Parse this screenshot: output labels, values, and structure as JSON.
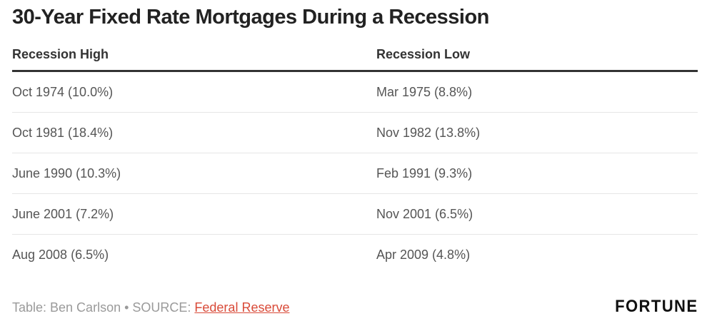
{
  "chart_data": {
    "type": "table",
    "title": "30-Year Fixed Rate Mortgages During a Recession",
    "columns": [
      "Recession High",
      "Recession Low"
    ],
    "rows": [
      [
        "Oct 1974 (10.0%)",
        "Mar 1975 (8.8%)"
      ],
      [
        "Oct 1981 (18.4%)",
        "Nov 1982 (13.8%)"
      ],
      [
        "June 1990 (10.3%)",
        "Feb 1991 (9.3%)"
      ],
      [
        "June 2001 (7.2%)",
        "Nov 2001 (6.5%)"
      ],
      [
        "Aug 2008 (6.5%)",
        "Apr 2009 (4.8%)"
      ]
    ]
  },
  "footer": {
    "credit": "Table: Ben Carlson • SOURCE: ",
    "source_link": "Federal Reserve",
    "logo": "FORTUNE"
  },
  "colors": {
    "link": "#d94a38",
    "footer_text": "#9a9a9a",
    "header_rule": "#333333"
  }
}
